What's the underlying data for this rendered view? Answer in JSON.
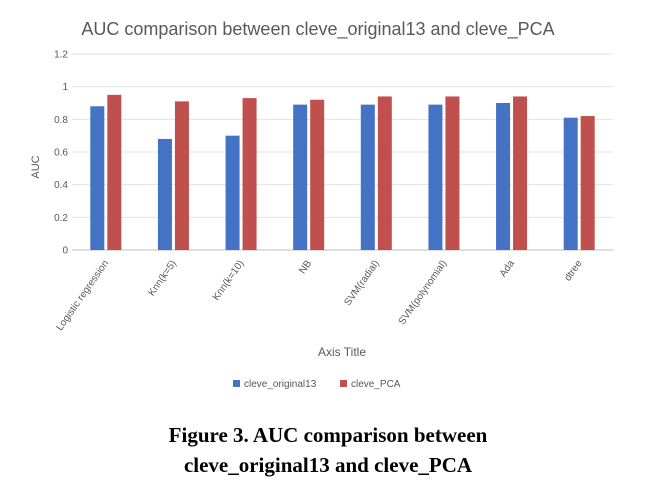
{
  "chart_data": {
    "type": "bar",
    "title": "AUC comparison between cleve_original13 and cleve_PCA",
    "xlabel": "Axis Title",
    "ylabel": "AUC",
    "ylim": [
      0,
      1.2
    ],
    "yticks": [
      "0",
      "0.2",
      "0.4",
      "0.6",
      "0.8",
      "1",
      "1.2"
    ],
    "grid": true,
    "legend_position": "bottom",
    "categories": [
      "Logistic regression",
      "Knn(k=5)",
      "Knn(k=10)",
      "NB",
      "SVM(radial)",
      "SVM(polynomial)",
      "Ada",
      "dtree"
    ],
    "series": [
      {
        "name": "cleve_original13",
        "color": "#4472c4",
        "values": [
          0.88,
          0.68,
          0.7,
          0.89,
          0.89,
          0.89,
          0.9,
          0.81
        ]
      },
      {
        "name": "cleve_PCA",
        "color": "#c0504d",
        "values": [
          0.95,
          0.91,
          0.93,
          0.92,
          0.94,
          0.94,
          0.94,
          0.82
        ]
      }
    ]
  },
  "caption": {
    "line1": "Figure 3.  AUC comparison between",
    "line2": "cleve_original13 and cleve_PCA"
  }
}
